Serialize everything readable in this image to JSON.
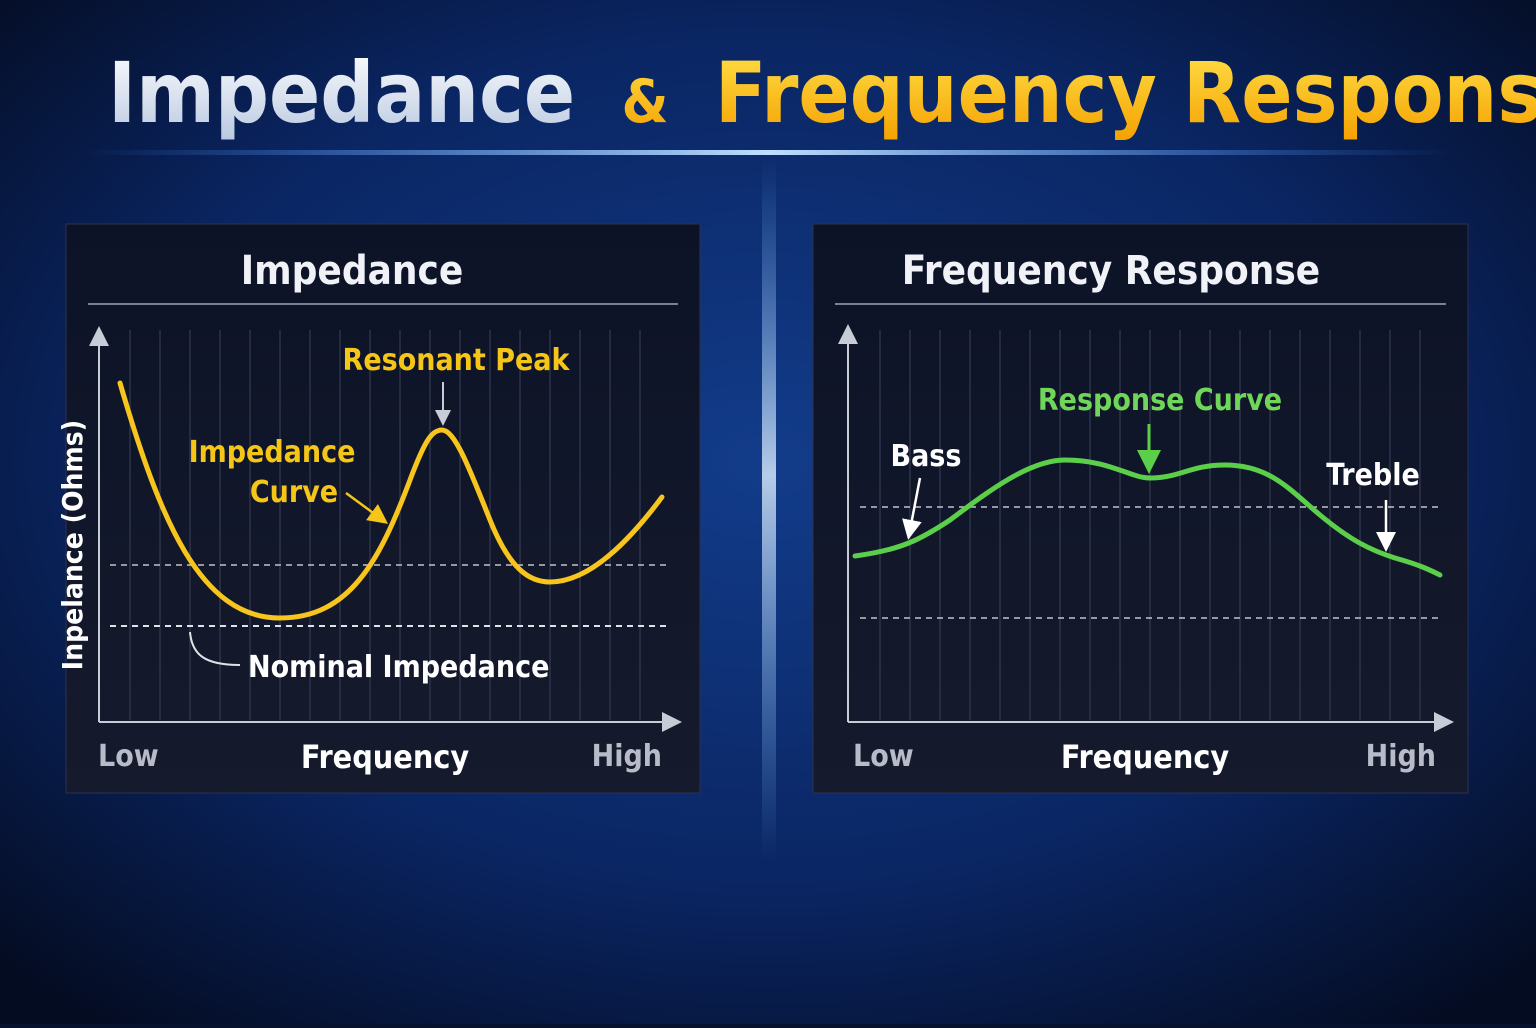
{
  "header": {
    "title_part1": "Impedance",
    "title_amp": "&",
    "title_part2": "Frequency Response"
  },
  "panels": [
    {
      "title": "Impedance",
      "y_axis_label": "Inpelance (Ohms)",
      "x_axis_label": "Frequency",
      "x_low": "Low",
      "x_high": "High",
      "annotations": {
        "peak": "Resonant Peak",
        "curve_line1": "Impedance",
        "curve_line2": "Curve",
        "nominal": "Nominal Impedance"
      }
    },
    {
      "title": "Frequency Response",
      "x_axis_label": "Frequency",
      "x_low": "Low",
      "x_high": "High",
      "annotations": {
        "curve": "Response Curve",
        "bass": "Bass",
        "treble": "Treble"
      }
    }
  ]
}
